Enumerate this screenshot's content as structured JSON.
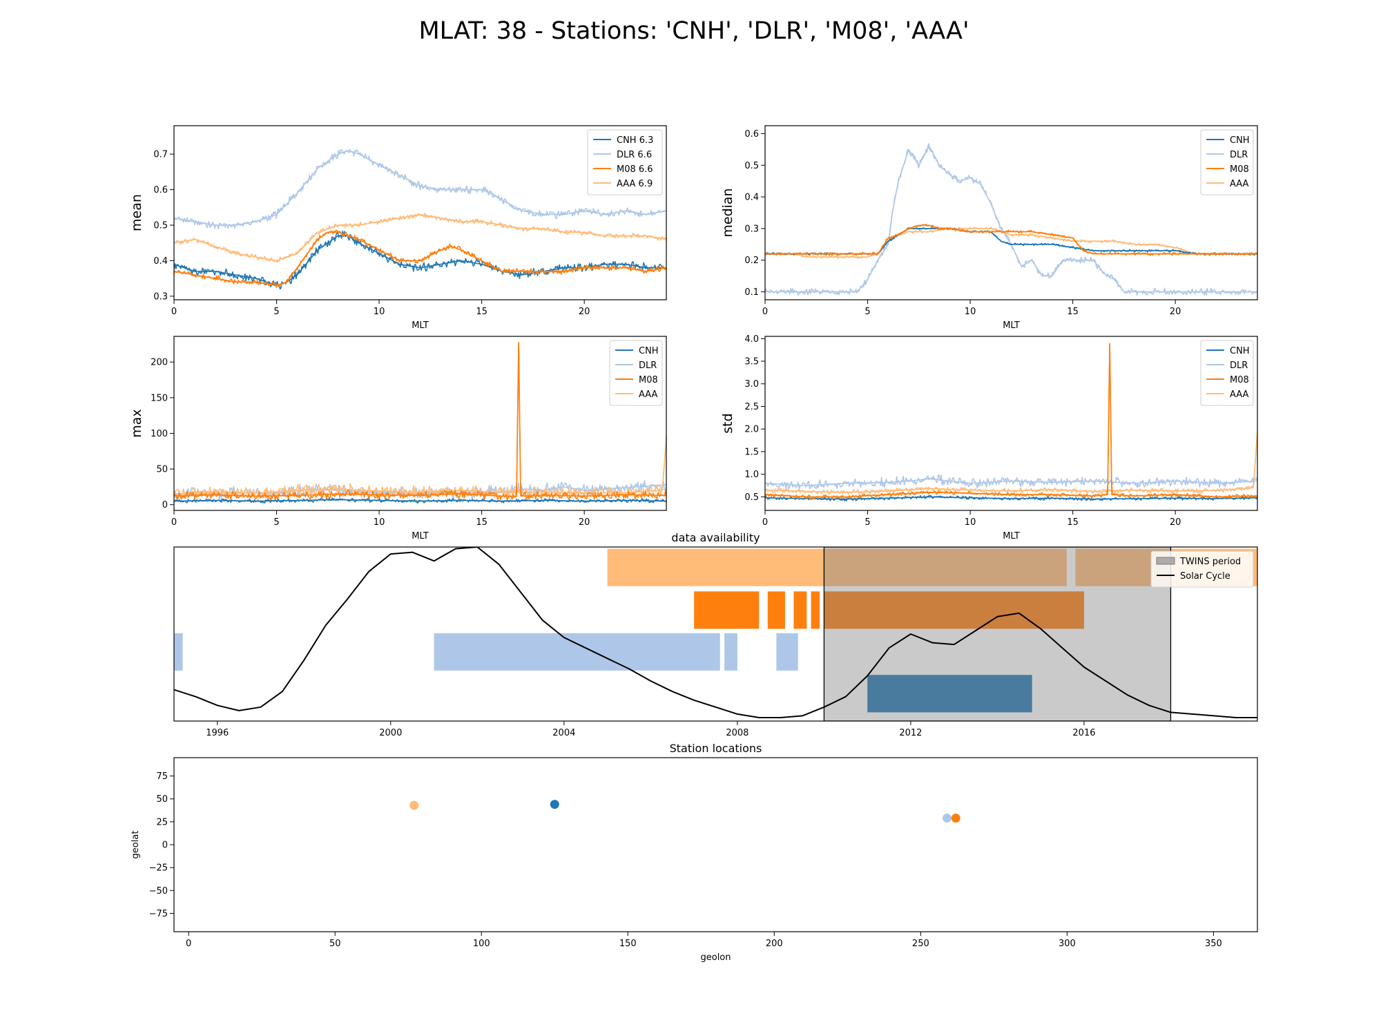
{
  "figure": {
    "title": "MLAT: 38 - Stations: 'CNH', 'DLR', 'M08', 'AAA'"
  },
  "colors": {
    "CNH": "#1f77b4",
    "DLR": "#aec7e8",
    "M08": "#ff7f0e",
    "AAA": "#ffbb78",
    "twins": "#c8c8c8",
    "solar": "#000000"
  },
  "chart_data": [
    {
      "id": "mean",
      "type": "line",
      "title": "",
      "xlabel": "MLT",
      "ylabel": "mean",
      "xlim": [
        0,
        24
      ],
      "ylim": [
        0.29,
        0.78
      ],
      "xticks": [
        0,
        5,
        10,
        15,
        20
      ],
      "yticks": [
        0.3,
        0.4,
        0.5,
        0.6,
        0.7
      ],
      "legend": "top-right",
      "series": [
        {
          "name": "CNH 6.3",
          "station": "CNH",
          "x": [
            0,
            1,
            2,
            3,
            4,
            5,
            5.5,
            6,
            7,
            8,
            8.5,
            9,
            10,
            11,
            12,
            13,
            14,
            15,
            16,
            17,
            18,
            19,
            20,
            21,
            22,
            23,
            24
          ],
          "y": [
            0.39,
            0.37,
            0.37,
            0.36,
            0.35,
            0.33,
            0.34,
            0.36,
            0.43,
            0.47,
            0.47,
            0.45,
            0.42,
            0.39,
            0.38,
            0.39,
            0.4,
            0.39,
            0.37,
            0.36,
            0.37,
            0.38,
            0.38,
            0.39,
            0.39,
            0.38,
            0.38
          ]
        },
        {
          "name": "DLR 6.6",
          "station": "DLR",
          "x": [
            0,
            1,
            2,
            3,
            4,
            5,
            6,
            7,
            8,
            8.5,
            9,
            10,
            11,
            12,
            13,
            14,
            15,
            15.5,
            16,
            17,
            18,
            19,
            20,
            21,
            22,
            23,
            24
          ],
          "y": [
            0.52,
            0.51,
            0.5,
            0.5,
            0.51,
            0.53,
            0.59,
            0.66,
            0.7,
            0.71,
            0.7,
            0.67,
            0.64,
            0.61,
            0.6,
            0.6,
            0.6,
            0.59,
            0.57,
            0.54,
            0.53,
            0.53,
            0.54,
            0.53,
            0.54,
            0.53,
            0.54
          ]
        },
        {
          "name": "M08 6.6",
          "station": "M08",
          "x": [
            0,
            1,
            2,
            3,
            4,
            5,
            5.5,
            6,
            7,
            7.5,
            8,
            9,
            10,
            11,
            12,
            13,
            13.5,
            14,
            15,
            16,
            17,
            18,
            19,
            20,
            21,
            22,
            23,
            24
          ],
          "y": [
            0.37,
            0.36,
            0.35,
            0.34,
            0.34,
            0.33,
            0.34,
            0.38,
            0.46,
            0.48,
            0.48,
            0.46,
            0.43,
            0.4,
            0.4,
            0.43,
            0.44,
            0.43,
            0.4,
            0.37,
            0.37,
            0.37,
            0.37,
            0.38,
            0.38,
            0.38,
            0.37,
            0.38
          ]
        },
        {
          "name": "AAA 6.9",
          "station": "AAA",
          "x": [
            0,
            1,
            2,
            3,
            4,
            5,
            6,
            7,
            8,
            9,
            10,
            11,
            12,
            13,
            14,
            15,
            16,
            17,
            18,
            19,
            20,
            21,
            22,
            23,
            24
          ],
          "y": [
            0.45,
            0.46,
            0.44,
            0.42,
            0.41,
            0.4,
            0.42,
            0.48,
            0.5,
            0.5,
            0.51,
            0.52,
            0.53,
            0.52,
            0.51,
            0.51,
            0.5,
            0.49,
            0.49,
            0.48,
            0.48,
            0.47,
            0.47,
            0.47,
            0.46
          ]
        }
      ]
    },
    {
      "id": "median",
      "type": "line",
      "title": "",
      "xlabel": "MLT",
      "ylabel": "median",
      "xlim": [
        0,
        24
      ],
      "ylim": [
        0.075,
        0.625
      ],
      "xticks": [
        0,
        5,
        10,
        15,
        20
      ],
      "yticks": [
        0.1,
        0.2,
        0.3,
        0.4,
        0.5,
        0.6
      ],
      "legend": "top-right",
      "series": [
        {
          "name": "CNH",
          "station": "CNH",
          "x": [
            0,
            2,
            2.2,
            5.5,
            6,
            7,
            8,
            9,
            10,
            11,
            11.5,
            12,
            13,
            14,
            15,
            16,
            17,
            18,
            19,
            20,
            21,
            22,
            24
          ],
          "y": [
            0.22,
            0.22,
            0.22,
            0.22,
            0.26,
            0.3,
            0.3,
            0.3,
            0.29,
            0.29,
            0.26,
            0.25,
            0.25,
            0.25,
            0.24,
            0.23,
            0.23,
            0.23,
            0.23,
            0.23,
            0.22,
            0.22,
            0.22
          ]
        },
        {
          "name": "DLR",
          "station": "DLR",
          "x": [
            0,
            4.5,
            5,
            5.5,
            6,
            6.2,
            6.5,
            7,
            7.5,
            8,
            8.5,
            9,
            9.5,
            10,
            10.5,
            11,
            11.5,
            12,
            12.5,
            13,
            13.5,
            14,
            14.5,
            15,
            15.5,
            16,
            16.5,
            17,
            17.5,
            18,
            20,
            24
          ],
          "y": [
            0.1,
            0.1,
            0.14,
            0.2,
            0.25,
            0.35,
            0.45,
            0.55,
            0.5,
            0.56,
            0.5,
            0.47,
            0.45,
            0.46,
            0.44,
            0.38,
            0.3,
            0.25,
            0.18,
            0.2,
            0.15,
            0.15,
            0.2,
            0.2,
            0.2,
            0.2,
            0.16,
            0.14,
            0.1,
            0.1,
            0.1,
            0.1
          ]
        },
        {
          "name": "M08",
          "station": "M08",
          "x": [
            0,
            5,
            5.5,
            6,
            6.5,
            7,
            7.5,
            8,
            8.5,
            9,
            10,
            11,
            12,
            13,
            14,
            15,
            15.5,
            16,
            24
          ],
          "y": [
            0.22,
            0.22,
            0.22,
            0.27,
            0.28,
            0.3,
            0.31,
            0.31,
            0.3,
            0.3,
            0.29,
            0.29,
            0.29,
            0.29,
            0.28,
            0.27,
            0.23,
            0.22,
            0.22
          ]
        },
        {
          "name": "AAA",
          "station": "AAA",
          "x": [
            0,
            1.5,
            2,
            3,
            4,
            5,
            5.5,
            6,
            6.5,
            7,
            8,
            9,
            10,
            11,
            12,
            13,
            14,
            15,
            16,
            17,
            18,
            19,
            20,
            21,
            24
          ],
          "y": [
            0.22,
            0.22,
            0.21,
            0.21,
            0.21,
            0.21,
            0.22,
            0.26,
            0.28,
            0.29,
            0.29,
            0.3,
            0.3,
            0.3,
            0.28,
            0.28,
            0.27,
            0.26,
            0.26,
            0.26,
            0.25,
            0.25,
            0.24,
            0.22,
            0.22
          ]
        }
      ]
    },
    {
      "id": "max",
      "type": "line",
      "title": "",
      "xlabel": "MLT",
      "ylabel": "max",
      "xlim": [
        0,
        24
      ],
      "ylim": [
        -8,
        236
      ],
      "xticks": [
        0,
        5,
        10,
        15,
        20
      ],
      "yticks": [
        0,
        50,
        100,
        150,
        200
      ],
      "legend": "top-right",
      "series": [
        {
          "name": "CNH",
          "station": "CNH",
          "x": [
            0,
            2,
            4,
            6,
            8,
            10,
            12,
            14,
            16,
            18,
            20,
            22,
            24
          ],
          "y": [
            5,
            6,
            5,
            6,
            7,
            6,
            5,
            6,
            5,
            6,
            5,
            6,
            5
          ]
        },
        {
          "name": "DLR",
          "station": "DLR",
          "x": [
            0,
            1,
            2,
            3,
            4,
            5,
            6,
            7,
            8,
            9,
            10,
            11,
            12,
            13,
            14,
            15,
            16,
            17,
            18,
            19,
            20,
            21,
            22,
            23,
            24
          ],
          "y": [
            14,
            18,
            15,
            17,
            16,
            15,
            20,
            22,
            20,
            18,
            16,
            17,
            15,
            18,
            16,
            17,
            18,
            22,
            20,
            25,
            20,
            22,
            24,
            26,
            28
          ]
        },
        {
          "name": "M08",
          "station": "M08",
          "x": [
            0,
            2,
            4,
            6,
            8,
            10,
            12,
            14,
            16,
            16.7,
            16.8,
            16.9,
            18,
            20,
            22,
            24
          ],
          "y": [
            12,
            14,
            12,
            13,
            15,
            14,
            13,
            15,
            12,
            12,
            228,
            12,
            13,
            12,
            14,
            13
          ]
        },
        {
          "name": "AAA",
          "station": "AAA",
          "x": [
            0,
            2,
            4,
            6,
            8,
            10,
            12,
            14,
            16,
            18,
            20,
            22,
            23.8,
            24
          ],
          "y": [
            15,
            18,
            16,
            20,
            22,
            19,
            18,
            20,
            17,
            18,
            16,
            17,
            20,
            95
          ]
        }
      ]
    },
    {
      "id": "std",
      "type": "line",
      "title": "",
      "xlabel": "MLT",
      "ylabel": "std",
      "xlim": [
        0,
        24
      ],
      "ylim": [
        0.2,
        4.05
      ],
      "xticks": [
        0,
        5,
        10,
        15,
        20
      ],
      "yticks": [
        0.5,
        1.0,
        1.5,
        2.0,
        2.5,
        3.0,
        3.5,
        4.0
      ],
      "legend": "top-right",
      "series": [
        {
          "name": "CNH",
          "station": "CNH",
          "x": [
            0,
            2,
            4,
            6,
            8,
            10,
            12,
            14,
            16,
            18,
            20,
            22,
            24
          ],
          "y": [
            0.48,
            0.46,
            0.45,
            0.47,
            0.5,
            0.48,
            0.46,
            0.47,
            0.45,
            0.46,
            0.47,
            0.46,
            0.48
          ]
        },
        {
          "name": "DLR",
          "station": "DLR",
          "x": [
            0,
            2,
            4,
            6,
            7,
            8,
            9,
            10,
            12,
            14,
            16,
            18,
            20,
            22,
            24
          ],
          "y": [
            0.8,
            0.75,
            0.8,
            0.82,
            0.85,
            0.9,
            0.85,
            0.8,
            0.85,
            0.82,
            0.85,
            0.8,
            0.85,
            0.8,
            0.85
          ]
        },
        {
          "name": "M08",
          "station": "M08",
          "x": [
            0,
            2,
            4,
            6,
            8,
            10,
            12,
            14,
            16,
            16.7,
            16.8,
            16.9,
            18,
            20,
            22,
            24
          ],
          "y": [
            0.55,
            0.5,
            0.5,
            0.55,
            0.6,
            0.58,
            0.55,
            0.55,
            0.52,
            0.55,
            3.9,
            0.55,
            0.52,
            0.55,
            0.5,
            0.52
          ]
        },
        {
          "name": "AAA",
          "station": "AAA",
          "x": [
            0,
            2,
            4,
            6,
            8,
            10,
            12,
            14,
            16,
            18,
            20,
            22,
            23.8,
            24
          ],
          "y": [
            0.65,
            0.62,
            0.6,
            0.63,
            0.68,
            0.65,
            0.63,
            0.66,
            0.62,
            0.65,
            0.63,
            0.64,
            0.7,
            1.95
          ]
        }
      ]
    },
    {
      "id": "availability",
      "type": "bar",
      "title": "data availability",
      "xlabel": "",
      "ylabel": "",
      "xlim": [
        1995,
        2020
      ],
      "ylim": [
        0,
        1
      ],
      "xticks": [
        1996,
        2000,
        2004,
        2008,
        2012,
        2016
      ],
      "legend": "top-right",
      "twins_period": {
        "label": "TWINS period",
        "start": 2010,
        "end": 2018
      },
      "availability": [
        {
          "station": "AAA",
          "segments": [
            [
              2005,
              2015.6
            ],
            [
              2015.8,
              2020
            ]
          ]
        },
        {
          "station": "M08",
          "segments": [
            [
              2007,
              2008.5
            ],
            [
              2008.7,
              2009.1
            ],
            [
              2009.3,
              2009.6
            ],
            [
              2009.7,
              2009.9
            ],
            [
              2010,
              2016
            ]
          ]
        },
        {
          "station": "DLR",
          "segments": [
            [
              1995,
              1995.2
            ],
            [
              2001,
              2007.6
            ],
            [
              2007.7,
              2008
            ],
            [
              2008.9,
              2009.4
            ]
          ]
        },
        {
          "station": "CNH",
          "segments": [
            [
              2011,
              2014.8
            ]
          ]
        }
      ],
      "solar_cycle": {
        "label": "Solar Cycle",
        "x": [
          1995,
          1995.5,
          1996,
          1996.5,
          1997,
          1997.5,
          1998,
          1998.5,
          1999,
          1999.5,
          2000,
          2000.5,
          2001,
          2001.5,
          2002,
          2002.5,
          2003,
          2003.5,
          2004,
          2004.5,
          2005,
          2005.5,
          2006,
          2006.5,
          2007,
          2007.5,
          2008,
          2008.5,
          2009,
          2009.5,
          2010,
          2010.5,
          2011,
          2011.5,
          2012,
          2012.5,
          2013,
          2013.5,
          2014,
          2014.5,
          2015,
          2015.5,
          2016,
          2016.5,
          2017,
          2017.5,
          2018,
          2018.5,
          2019,
          2019.5,
          2020
        ],
        "y": [
          0.18,
          0.14,
          0.09,
          0.06,
          0.08,
          0.17,
          0.35,
          0.55,
          0.7,
          0.86,
          0.96,
          0.97,
          0.92,
          0.99,
          1.0,
          0.9,
          0.74,
          0.58,
          0.48,
          0.42,
          0.36,
          0.3,
          0.23,
          0.17,
          0.12,
          0.08,
          0.04,
          0.02,
          0.02,
          0.03,
          0.08,
          0.14,
          0.26,
          0.42,
          0.5,
          0.45,
          0.44,
          0.52,
          0.6,
          0.62,
          0.53,
          0.42,
          0.31,
          0.23,
          0.15,
          0.09,
          0.05,
          0.04,
          0.03,
          0.02,
          0.02
        ]
      }
    },
    {
      "id": "locations",
      "type": "scatter",
      "title": "Station locations",
      "xlabel": "geolon",
      "ylabel": "geolat",
      "xlim": [
        -5,
        365
      ],
      "ylim": [
        -95,
        95
      ],
      "xticks": [
        0,
        50,
        100,
        150,
        200,
        250,
        300,
        350
      ],
      "yticks": [
        -75,
        -50,
        -25,
        0,
        25,
        50,
        75
      ],
      "points": [
        {
          "station": "AAA",
          "lon": 77,
          "lat": 43
        },
        {
          "station": "CNH",
          "lon": 125,
          "lat": 44
        },
        {
          "station": "DLR",
          "lon": 259,
          "lat": 29
        },
        {
          "station": "M08",
          "lon": 262,
          "lat": 29
        }
      ]
    }
  ]
}
